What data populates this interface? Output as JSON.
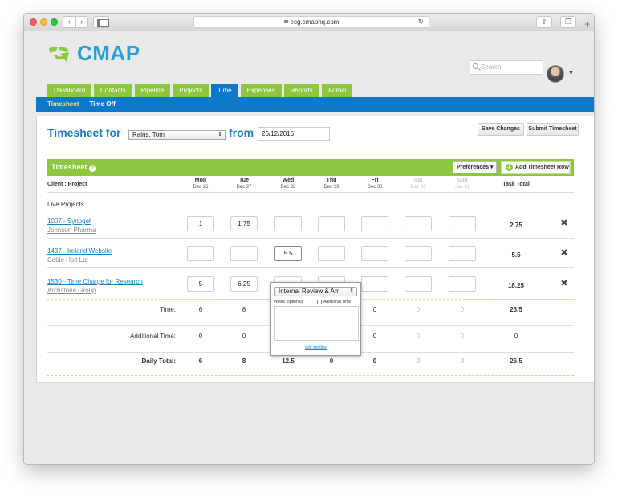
{
  "browser": {
    "url": "ecg.cmaphq.com"
  },
  "header": {
    "logo_text": "CMAP",
    "search_placeholder": "Search"
  },
  "nav": {
    "tabs": [
      "Dashboard",
      "Contacts",
      "Pipeline",
      "Projects",
      "Time",
      "Expenses",
      "Reports",
      "Admin"
    ],
    "active": "Time",
    "subtabs": [
      "Timesheet",
      "Time Off"
    ]
  },
  "timesheet": {
    "title": "Timesheet for",
    "person": "Rains, Tom",
    "from_label": "from",
    "from_date": "26/12/2016",
    "save_label": "Save Changes",
    "submit_label": "Submit Timesheet",
    "bar_title": "Timesheet",
    "preferences_label": "Preferences",
    "add_row_label": "Add Timesheet Row",
    "col_client": "Client : Project",
    "col_total": "Task Total",
    "days": [
      {
        "day": "Mon",
        "date": "Dec 26"
      },
      {
        "day": "Tue",
        "date": "Dec 27"
      },
      {
        "day": "Wed",
        "date": "Dec 28"
      },
      {
        "day": "Thu",
        "date": "Dec 29"
      },
      {
        "day": "Fri",
        "date": "Dec 30"
      },
      {
        "day": "Sat",
        "date": "Dec 31"
      },
      {
        "day": "Sun",
        "date": "Jan 01"
      }
    ],
    "section": "Live Projects",
    "rows": [
      {
        "project": "1007 - Synogel",
        "client": "Johnson Pharma",
        "values": [
          "1",
          "1.75",
          "",
          "",
          "",
          "",
          ""
        ],
        "total": "2.75"
      },
      {
        "project": "1437 - Ireland Website",
        "client": "Cable Holt Ltd",
        "values": [
          "",
          "",
          "5.5",
          "",
          "",
          "",
          ""
        ],
        "total": "5.5"
      },
      {
        "project": "1530 - Time Charge for Research",
        "client": "Archstone Group",
        "values": [
          "5",
          "6.25",
          "",
          "",
          "",
          "",
          ""
        ],
        "total": "18.25"
      }
    ],
    "summary": [
      {
        "label": "Time:",
        "values": [
          "6",
          "8",
          "",
          "",
          "0",
          "0",
          "0"
        ],
        "total": "26.5"
      },
      {
        "label": "Additional Time:",
        "values": [
          "0",
          "0",
          "0",
          "",
          "0",
          "0",
          "0"
        ],
        "total": "0"
      },
      {
        "label": "Daily Total:",
        "values": [
          "6",
          "8",
          "12.5",
          "0",
          "0",
          "0",
          "0"
        ],
        "total": "26.5"
      }
    ]
  },
  "popup": {
    "task": "Internal Review & Am",
    "notes_label": "Notes (optional)",
    "additional_label": "Additional Time",
    "add_another": "add another"
  },
  "colors": {
    "green": "#8dc63f",
    "blue": "#0d79c8",
    "title_blue": "#1b7fc3",
    "active_subtab": "#fdea5b"
  }
}
